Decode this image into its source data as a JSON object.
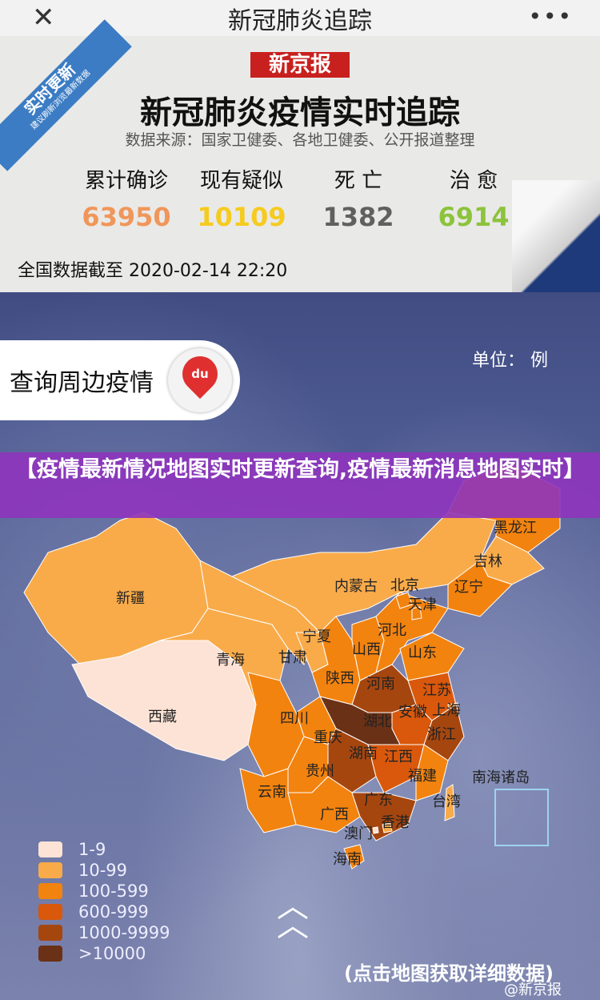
{
  "topbar": {
    "title": "新冠肺炎追踪",
    "close_icon": "close-icon",
    "more_icon": "more-icon"
  },
  "card": {
    "logo": "新京报",
    "ribbon": {
      "main": "实时更新",
      "sub": "建议刷新浏览最新数据"
    },
    "headline": "新冠肺炎疫情实时追踪",
    "source": "数据来源：国家卫健委、各地卫健委、公开报道整理",
    "stats": [
      {
        "label": "累计确诊",
        "value": "63950",
        "color": "#f0965a"
      },
      {
        "label": "现有疑似",
        "value": "10109",
        "color": "#f6cb20"
      },
      {
        "label": "死 亡",
        "value": "1382",
        "color": "#606060"
      },
      {
        "label": "治 愈",
        "value": "6914",
        "color": "#8cc33c"
      }
    ],
    "as_of": "全国数据截至 2020-02-14 22:20"
  },
  "query_button": {
    "label": "查询周边疫情",
    "icon": "baidu-map-pin-icon",
    "icon_text": "du"
  },
  "unit": "单位： 例",
  "banner": "【疫情最新情况地图实时更新查询,疫情最新消息地图实时】",
  "legend": [
    {
      "label": "1-9",
      "color": "#fde3d6"
    },
    {
      "label": "10-99",
      "color": "#f9ab4a"
    },
    {
      "label": "100-599",
      "color": "#f2830f"
    },
    {
      "label": "600-999",
      "color": "#d9580c"
    },
    {
      "label": "1000-9999",
      "color": "#a6460f"
    },
    {
      "label": ">10000",
      "color": "#6a3116"
    }
  ],
  "provinces": [
    {
      "name": "新疆",
      "level": 1
    },
    {
      "name": "西藏",
      "level": 0
    },
    {
      "name": "青海",
      "level": 1
    },
    {
      "name": "甘肃",
      "level": 1
    },
    {
      "name": "内蒙古",
      "level": 1
    },
    {
      "name": "黑龙江",
      "level": 2
    },
    {
      "name": "吉林",
      "level": 1
    },
    {
      "name": "辽宁",
      "level": 2
    },
    {
      "name": "宁夏",
      "level": 1
    },
    {
      "name": "陕西",
      "level": 2
    },
    {
      "name": "山西",
      "level": 2
    },
    {
      "name": "河北",
      "level": 2
    },
    {
      "name": "北京",
      "level": 2
    },
    {
      "name": "天津",
      "level": 2
    },
    {
      "name": "山东",
      "level": 2
    },
    {
      "name": "河南",
      "level": 4
    },
    {
      "name": "江苏",
      "level": 3
    },
    {
      "name": "安徽",
      "level": 3
    },
    {
      "name": "上海",
      "level": 2
    },
    {
      "name": "湖北",
      "level": 5
    },
    {
      "name": "重庆",
      "level": 2
    },
    {
      "name": "四川",
      "level": 2
    },
    {
      "name": "浙江",
      "level": 4
    },
    {
      "name": "湖南",
      "level": 4
    },
    {
      "name": "江西",
      "level": 3
    },
    {
      "name": "福建",
      "level": 2
    },
    {
      "name": "贵州",
      "level": 2
    },
    {
      "name": "云南",
      "level": 2
    },
    {
      "name": "广西",
      "level": 2
    },
    {
      "name": "广东",
      "level": 4
    },
    {
      "name": "海南",
      "level": 2
    },
    {
      "name": "台湾",
      "level": 1
    },
    {
      "name": "香港",
      "level": 1
    },
    {
      "name": "澳门",
      "level": 0
    }
  ],
  "nanhai_label": "南海诸岛",
  "scroll_up_icon": "double-chevron-up-icon",
  "tap_hint": "(点击地图获取详细数据)",
  "watermark": "@新京报"
}
